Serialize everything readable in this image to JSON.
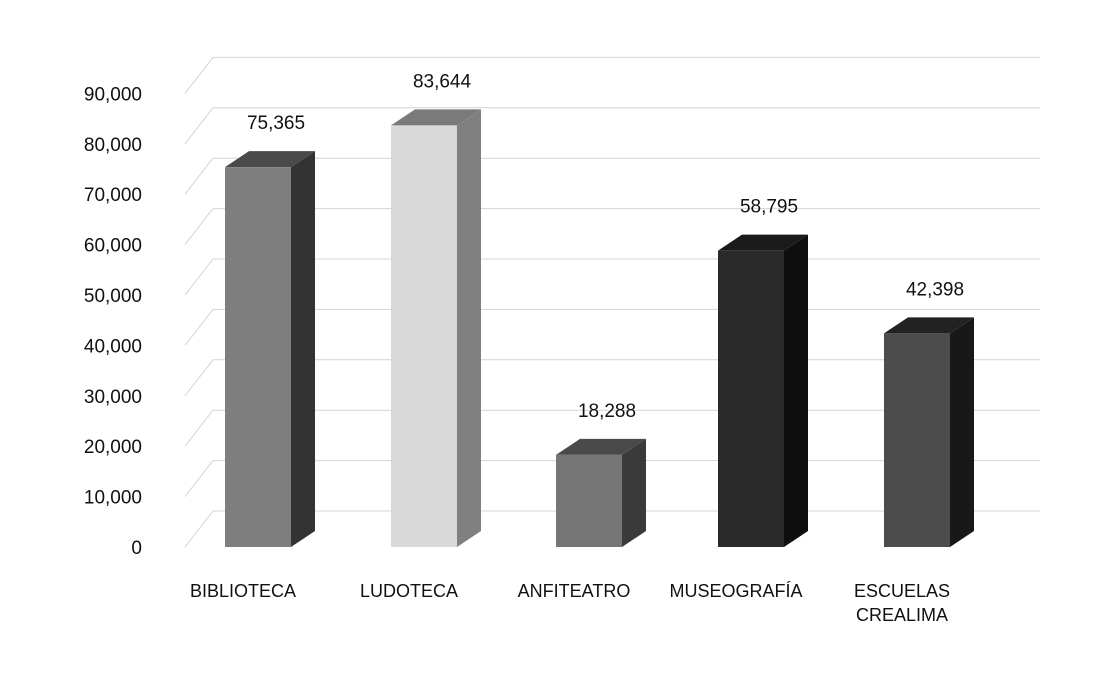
{
  "chart_data": {
    "type": "bar",
    "categories": [
      "BIBLIOTECA",
      "LUDOTECA",
      "ANFITEATRO",
      "MUSEOGRAFÍA",
      "ESCUELAS CREALIMA"
    ],
    "category_lines": [
      [
        "BIBLIOTECA"
      ],
      [
        "LUDOTECA"
      ],
      [
        "ANFITEATRO"
      ],
      [
        "MUSEOGRAFÍA"
      ],
      [
        "ESCUELAS",
        "CREALIMA"
      ]
    ],
    "values": [
      75365,
      83644,
      18288,
      58795,
      42398
    ],
    "value_labels": [
      "75,365",
      "83,644",
      "18,288",
      "58,795",
      "42,398"
    ],
    "yticks": [
      "0",
      "10,000",
      "20,000",
      "30,000",
      "40,000",
      "50,000",
      "60,000",
      "70,000",
      "80,000",
      "90,000"
    ],
    "ylim": [
      0,
      95000
    ],
    "grid": true,
    "three_d": true,
    "title": "",
    "xlabel": "",
    "ylabel": "",
    "bar_colors": [
      {
        "front": "#7e7e7e",
        "side": "#333333",
        "top": "#4a4a4a"
      },
      {
        "front": "#d9d9d9",
        "side": "#808080",
        "top": "#7a7a7a"
      },
      {
        "front": "#767676",
        "side": "#3a3a3a",
        "top": "#4a4a4a"
      },
      {
        "front": "#2a2a2a",
        "side": "#0e0e0e",
        "top": "#1a1a1a"
      },
      {
        "front": "#4c4c4c",
        "side": "#181818",
        "top": "#222222"
      }
    ],
    "grid_color": "#d4d4d4"
  }
}
